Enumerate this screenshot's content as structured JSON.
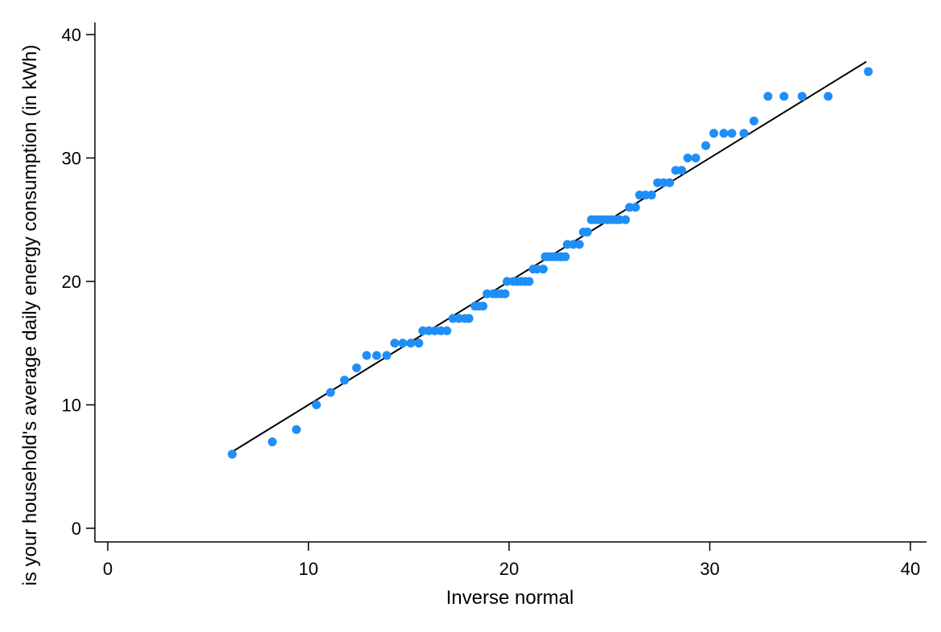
{
  "chart_data": {
    "type": "scatter",
    "title": "",
    "xlabel": "Inverse normal",
    "ylabel": "is your household's average daily energy consumption (in kWh)",
    "xlim": [
      0,
      40
    ],
    "ylim": [
      0,
      40
    ],
    "xticks": [
      0,
      10,
      20,
      30,
      40
    ],
    "yticks": [
      0,
      10,
      20,
      30,
      40
    ],
    "xtick_labels": [
      "0",
      "10",
      "20",
      "30",
      "40"
    ],
    "ytick_labels": [
      "0",
      "10",
      "20",
      "30",
      "40"
    ],
    "grid": false,
    "legend": false,
    "colors": {
      "points": "#1f8ff7",
      "reference_line": "#000000",
      "axis": "#000000"
    },
    "reference_line": {
      "points": [
        [
          6.1,
          6.1
        ],
        [
          37.8,
          37.8
        ]
      ]
    },
    "series": [
      {
        "points": [
          [
            6.2,
            6
          ],
          [
            8.2,
            7
          ],
          [
            9.4,
            8
          ],
          [
            10.4,
            10
          ],
          [
            11.1,
            11
          ],
          [
            11.8,
            12
          ],
          [
            12.4,
            13
          ],
          [
            12.9,
            14
          ],
          [
            13.4,
            14
          ],
          [
            13.9,
            14
          ],
          [
            14.3,
            15
          ],
          [
            14.7,
            15
          ],
          [
            15.1,
            15
          ],
          [
            15.5,
            15
          ],
          [
            15.7,
            16
          ],
          [
            16.0,
            16
          ],
          [
            16.3,
            16
          ],
          [
            16.6,
            16
          ],
          [
            16.9,
            16
          ],
          [
            17.2,
            17
          ],
          [
            17.5,
            17
          ],
          [
            17.8,
            17
          ],
          [
            18.0,
            17
          ],
          [
            18.3,
            18
          ],
          [
            18.5,
            18
          ],
          [
            18.7,
            18
          ],
          [
            18.9,
            19
          ],
          [
            19.2,
            19
          ],
          [
            19.4,
            19
          ],
          [
            19.6,
            19
          ],
          [
            19.8,
            19
          ],
          [
            19.9,
            20
          ],
          [
            20.2,
            20
          ],
          [
            20.4,
            20
          ],
          [
            20.6,
            20
          ],
          [
            20.8,
            20
          ],
          [
            21.0,
            20
          ],
          [
            21.2,
            21
          ],
          [
            21.4,
            21
          ],
          [
            21.7,
            21
          ],
          [
            21.8,
            22
          ],
          [
            22.0,
            22
          ],
          [
            22.2,
            22
          ],
          [
            22.4,
            22
          ],
          [
            22.6,
            22
          ],
          [
            22.8,
            22
          ],
          [
            22.9,
            23
          ],
          [
            23.2,
            23
          ],
          [
            23.5,
            23
          ],
          [
            23.7,
            24
          ],
          [
            23.9,
            24
          ],
          [
            24.1,
            25
          ],
          [
            24.3,
            25
          ],
          [
            24.5,
            25
          ],
          [
            24.7,
            25
          ],
          [
            24.9,
            25
          ],
          [
            25.1,
            25
          ],
          [
            25.3,
            25
          ],
          [
            25.5,
            25
          ],
          [
            25.8,
            25
          ],
          [
            26.0,
            26
          ],
          [
            26.3,
            26
          ],
          [
            26.5,
            27
          ],
          [
            26.8,
            27
          ],
          [
            27.1,
            27
          ],
          [
            27.4,
            28
          ],
          [
            27.7,
            28
          ],
          [
            28.0,
            28
          ],
          [
            28.3,
            29
          ],
          [
            28.6,
            29
          ],
          [
            28.9,
            30
          ],
          [
            29.3,
            30
          ],
          [
            29.8,
            31
          ],
          [
            30.2,
            32
          ],
          [
            30.7,
            32
          ],
          [
            31.1,
            32
          ],
          [
            31.7,
            32
          ],
          [
            32.2,
            33
          ],
          [
            32.9,
            35
          ],
          [
            33.7,
            35
          ],
          [
            34.6,
            35
          ],
          [
            35.9,
            35
          ],
          [
            37.9,
            37
          ]
        ]
      }
    ]
  }
}
